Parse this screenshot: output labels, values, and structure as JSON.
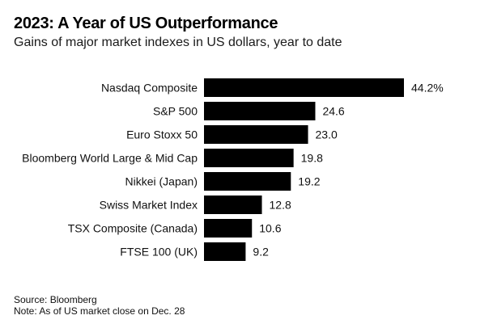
{
  "chart_data": {
    "type": "bar",
    "orientation": "horizontal",
    "title": "2023: A Year of US Outperformance",
    "subtitle": "Gains of major market indexes in US dollars, year to date",
    "categories": [
      "Nasdaq Composite",
      "S&P 500",
      "Euro Stoxx 50",
      "Bloomberg World Large & Mid Cap",
      "Nikkei (Japan)",
      "Swiss Market Index",
      "TSX Composite (Canada)",
      "FTSE 100 (UK)"
    ],
    "values": [
      44.2,
      24.6,
      23.0,
      19.8,
      19.2,
      12.8,
      10.6,
      9.2
    ],
    "value_labels": [
      "44.2%",
      "24.6",
      "23.0",
      "19.8",
      "19.2",
      "12.8",
      "10.6",
      "9.2"
    ],
    "unit": "%",
    "xlabel": "",
    "ylabel": "",
    "xlim": [
      0,
      44.2
    ],
    "grid": false,
    "legend": "none",
    "bar_color": "#000000"
  },
  "footer": {
    "source": "Source: Bloomberg",
    "note": "Note: As of US market close on Dec. 28"
  }
}
